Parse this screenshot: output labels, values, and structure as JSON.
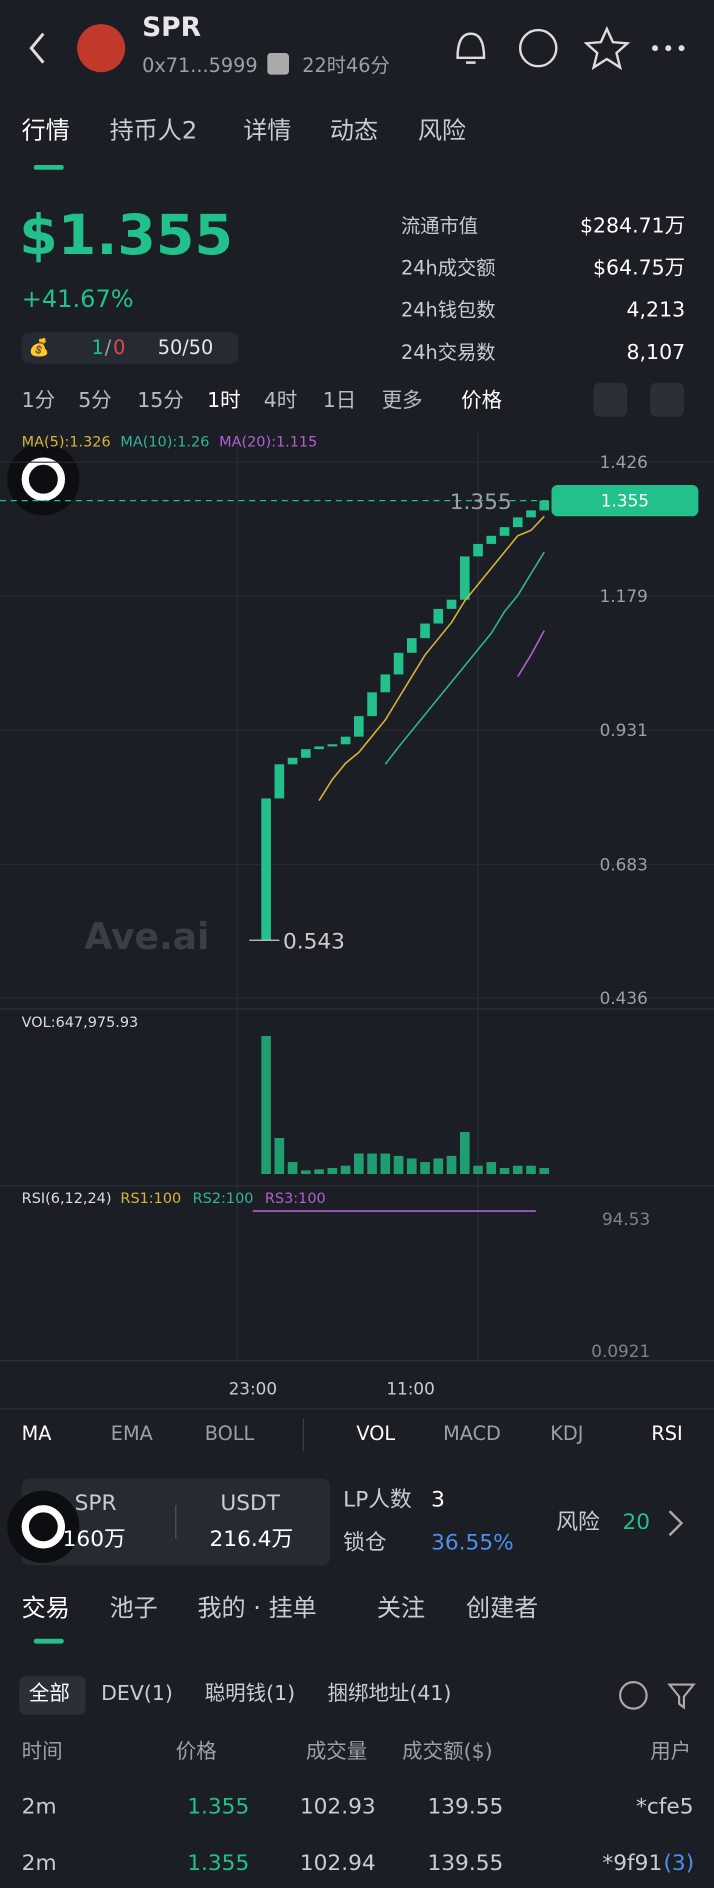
{
  "header": {
    "token": "SPR",
    "address": "0x71...5999",
    "age": "22时46分"
  },
  "tabs": [
    "行情",
    "持币人2",
    "详情",
    "动态",
    "风险"
  ],
  "price": "$1.355",
  "change": "+41.67%",
  "stats": [
    {
      "label": "流通市值",
      "value": "$284.71万"
    },
    {
      "label": "24h成交额",
      "value": "$64.75万"
    },
    {
      "label": "24h钱包数",
      "value": "4,213"
    },
    {
      "label": "24h交易数",
      "value": "8,107"
    }
  ],
  "badges": {
    "ratio": [
      "1",
      "/",
      "0"
    ],
    "rank": "50/50"
  },
  "intervals": [
    "1分",
    "5分",
    "15分",
    "1时",
    "4时",
    "1日",
    "更多",
    "价格"
  ],
  "chart": {
    "type": "candlestick",
    "ma_labels": [
      "MA(5):1.326",
      "MA(10):1.26",
      "MA(20):1.115"
    ],
    "ylim": [
      0.416,
      1.479
    ],
    "yticks": [
      1.426,
      1.179,
      0.931,
      0.683,
      0.436
    ],
    "current_price": 1.355,
    "current_label": "1.355",
    "low": 0.543,
    "low_label": "0.543",
    "watermark": "Ave.ai",
    "open": [
      0.543,
      0.805,
      0.868,
      0.88,
      0.896,
      0.901,
      0.905,
      0.919,
      0.957,
      1.001,
      1.034,
      1.074,
      1.101,
      1.128,
      1.155,
      1.172,
      1.252,
      1.275,
      1.29,
      1.306,
      1.324,
      1.337
    ],
    "close": [
      0.805,
      0.868,
      0.88,
      0.896,
      0.901,
      0.905,
      0.919,
      0.957,
      1.001,
      1.034,
      1.074,
      1.101,
      1.128,
      1.155,
      1.172,
      1.252,
      1.275,
      1.29,
      1.306,
      1.324,
      1.337,
      1.355
    ],
    "ma": [
      {
        "name": "MA5",
        "color": "#d9b43a",
        "values": [
          null,
          null,
          null,
          null,
          0.801,
          0.84,
          0.87,
          0.89,
          0.92,
          0.95,
          0.99,
          1.03,
          1.07,
          1.1,
          1.13,
          1.17,
          1.2,
          1.23,
          1.26,
          1.29,
          1.3,
          1.326
        ]
      },
      {
        "name": "MA10",
        "color": "#2fb59a",
        "values": [
          null,
          null,
          null,
          null,
          null,
          null,
          null,
          null,
          null,
          0.868,
          0.9,
          0.93,
          0.96,
          0.99,
          1.02,
          1.05,
          1.08,
          1.11,
          1.15,
          1.18,
          1.22,
          1.26
        ]
      },
      {
        "name": "MA20",
        "color": "#b35fd1",
        "values": [
          null,
          null,
          null,
          null,
          null,
          null,
          null,
          null,
          null,
          null,
          null,
          null,
          null,
          null,
          null,
          null,
          null,
          null,
          null,
          1.03,
          1.07,
          1.115
        ]
      }
    ],
    "vol_label": "VOL:647,975.93",
    "vol_ylim": [
      0,
      650000
    ],
    "volume": [
      648000,
      169000,
      56000,
      17000,
      22000,
      28000,
      39000,
      96000,
      96000,
      96000,
      85000,
      73000,
      56000,
      73000,
      85000,
      197000,
      39000,
      56000,
      28000,
      39000,
      39000,
      28000
    ],
    "rsi_labels": [
      "RSI(6,12,24)",
      "RS1:100",
      "RS2:100",
      "RS3:100"
    ],
    "rsi_ylim": [
      -6.84,
      117.9
    ],
    "rsi_yticks": [
      94.53,
      0.0921
    ],
    "rsi3": [
      100,
      100,
      100,
      100,
      100,
      100,
      100,
      100,
      100,
      100,
      100,
      100,
      100,
      100,
      100,
      100,
      100,
      100,
      100,
      100,
      100,
      100
    ],
    "time_labels": [
      "23:00",
      "11:00"
    ]
  },
  "indicators": {
    "main": [
      "MA",
      "EMA",
      "BOLL"
    ],
    "sub": [
      "VOL",
      "MACD",
      "KDJ",
      "RSI"
    ]
  },
  "pool": {
    "base": "SPR",
    "quote": "USDT",
    "base_amount": "160万",
    "quote_amount": "216.4万",
    "lp_label": "LP人数",
    "lp": "3",
    "lock_label": "锁仓",
    "lock": "36.55%",
    "risk_label": "风险",
    "risk": "20"
  },
  "trade_tabs": [
    "交易",
    "池子",
    "我的 · 挂单",
    "关注",
    "创建者"
  ],
  "filters": [
    "全部",
    "DEV(1)",
    "聪明钱(1)",
    "捆绑地址(41)"
  ],
  "table": {
    "headers": [
      "时间",
      "价格",
      "成交量",
      "成交额($)",
      "用户"
    ],
    "rows": [
      [
        "2m",
        "1.355",
        "102.93",
        "139.55",
        "*cfe5"
      ],
      [
        "2m",
        "1.355",
        "102.94",
        "139.55",
        "*9f91"
      ]
    ],
    "row_tags": [
      null,
      "(3)"
    ]
  }
}
